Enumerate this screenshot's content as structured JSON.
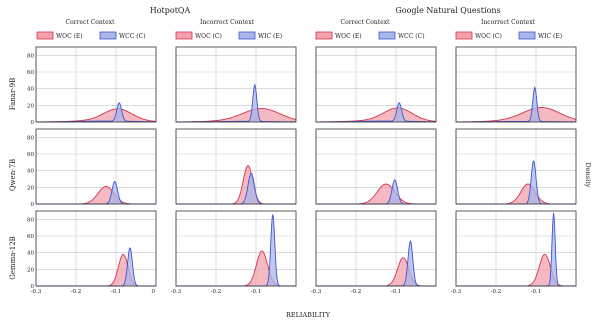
{
  "figure": {
    "group_titles": [
      "HotpotQA",
      "Google Natural Questions"
    ],
    "context_titles": [
      "Correct Context",
      "Incorrect Context",
      "Correct Context",
      "Incorrect Context"
    ],
    "xlabel": "RELIABILITY",
    "ylabel_right": "Density",
    "row_labels": [
      "Fanar-9B",
      "Qwen-7B",
      "Gemma-12B"
    ],
    "colors": {
      "red_fill": "#f2a1ad",
      "red_line": "#d6334a",
      "blue_fill": "#a9b6ea",
      "blue_line": "#3e56cf"
    }
  },
  "legends": [
    [
      {
        "label": "WOC (E)",
        "color": "red"
      },
      {
        "label": "WCC (C)",
        "color": "blue"
      }
    ],
    [
      {
        "label": "WOC (C)",
        "color": "red"
      },
      {
        "label": "WIC (E)",
        "color": "blue"
      }
    ],
    [
      {
        "label": "WOC (E)",
        "color": "red"
      },
      {
        "label": "WCC (C)",
        "color": "blue"
      }
    ],
    [
      {
        "label": "WOC (C)",
        "color": "red"
      },
      {
        "label": "WIC (E)",
        "color": "blue"
      }
    ]
  ],
  "chart_data": {
    "type": "area",
    "xlim": [
      -0.3,
      0.0
    ],
    "ylim": [
      0,
      90
    ],
    "xticks": [
      -0.3,
      -0.2,
      -0.1
    ],
    "xtick_labels": [
      "-0.3",
      "-0.2",
      "-0.1"
    ],
    "x_end_label": "0",
    "yticks": [
      0,
      20,
      40,
      60,
      80
    ],
    "ytick_labels": [
      "0",
      "20",
      "40",
      "60",
      "80"
    ],
    "grid": true,
    "legend_placement": "above each column",
    "panels": [
      {
        "row": 0,
        "col": 0,
        "red": {
          "mu": -0.095,
          "sd": 0.035,
          "peak": 14,
          "tail": 0.4
        },
        "blue": {
          "mu": -0.092,
          "sd": 0.006,
          "peak": 22,
          "tail": 0.15
        }
      },
      {
        "row": 0,
        "col": 1,
        "red": {
          "mu": -0.085,
          "sd": 0.045,
          "peak": 14,
          "tail": 0.5
        },
        "blue": {
          "mu": -0.103,
          "sd": 0.005,
          "peak": 44,
          "tail": 0.05
        }
      },
      {
        "row": 0,
        "col": 2,
        "red": {
          "mu": -0.095,
          "sd": 0.035,
          "peak": 15,
          "tail": 0.4
        },
        "blue": {
          "mu": -0.092,
          "sd": 0.006,
          "peak": 22,
          "tail": 0.15
        }
      },
      {
        "row": 0,
        "col": 3,
        "red": {
          "mu": -0.085,
          "sd": 0.045,
          "peak": 15,
          "tail": 0.5
        },
        "blue": {
          "mu": -0.103,
          "sd": 0.005,
          "peak": 41,
          "tail": 0.05
        }
      },
      {
        "row": 1,
        "col": 0,
        "red": {
          "mu": -0.125,
          "sd": 0.02,
          "peak": 21,
          "tail": 0.0
        },
        "blue": {
          "mu": -0.103,
          "sd": 0.007,
          "peak": 27,
          "tail": 0.0
        }
      },
      {
        "row": 1,
        "col": 1,
        "red": {
          "mu": -0.12,
          "sd": 0.012,
          "peak": 46,
          "tail": 0.0
        },
        "blue": {
          "mu": -0.112,
          "sd": 0.008,
          "peak": 37,
          "tail": 0.0
        }
      },
      {
        "row": 1,
        "col": 2,
        "red": {
          "mu": -0.125,
          "sd": 0.022,
          "peak": 24,
          "tail": 0.0
        },
        "blue": {
          "mu": -0.103,
          "sd": 0.007,
          "peak": 29,
          "tail": 0.0
        }
      },
      {
        "row": 1,
        "col": 3,
        "red": {
          "mu": -0.12,
          "sd": 0.018,
          "peak": 24,
          "tail": 0.0
        },
        "blue": {
          "mu": -0.106,
          "sd": 0.006,
          "peak": 52,
          "tail": 0.0
        }
      },
      {
        "row": 2,
        "col": 0,
        "red": {
          "mu": -0.082,
          "sd": 0.012,
          "peak": 38,
          "tail": 0.0
        },
        "blue": {
          "mu": -0.065,
          "sd": 0.006,
          "peak": 46,
          "tail": 0.0
        }
      },
      {
        "row": 2,
        "col": 1,
        "red": {
          "mu": -0.085,
          "sd": 0.014,
          "peak": 42,
          "tail": 0.0
        },
        "blue": {
          "mu": -0.058,
          "sd": 0.005,
          "peak": 86,
          "tail": 0.0
        }
      },
      {
        "row": 2,
        "col": 2,
        "red": {
          "mu": -0.082,
          "sd": 0.014,
          "peak": 34,
          "tail": 0.0
        },
        "blue": {
          "mu": -0.064,
          "sd": 0.006,
          "peak": 54,
          "tail": 0.0
        }
      },
      {
        "row": 2,
        "col": 3,
        "red": {
          "mu": -0.078,
          "sd": 0.014,
          "peak": 38,
          "tail": 0.0
        },
        "blue": {
          "mu": -0.056,
          "sd": 0.004,
          "peak": 88,
          "tail": 0.0
        }
      }
    ]
  }
}
